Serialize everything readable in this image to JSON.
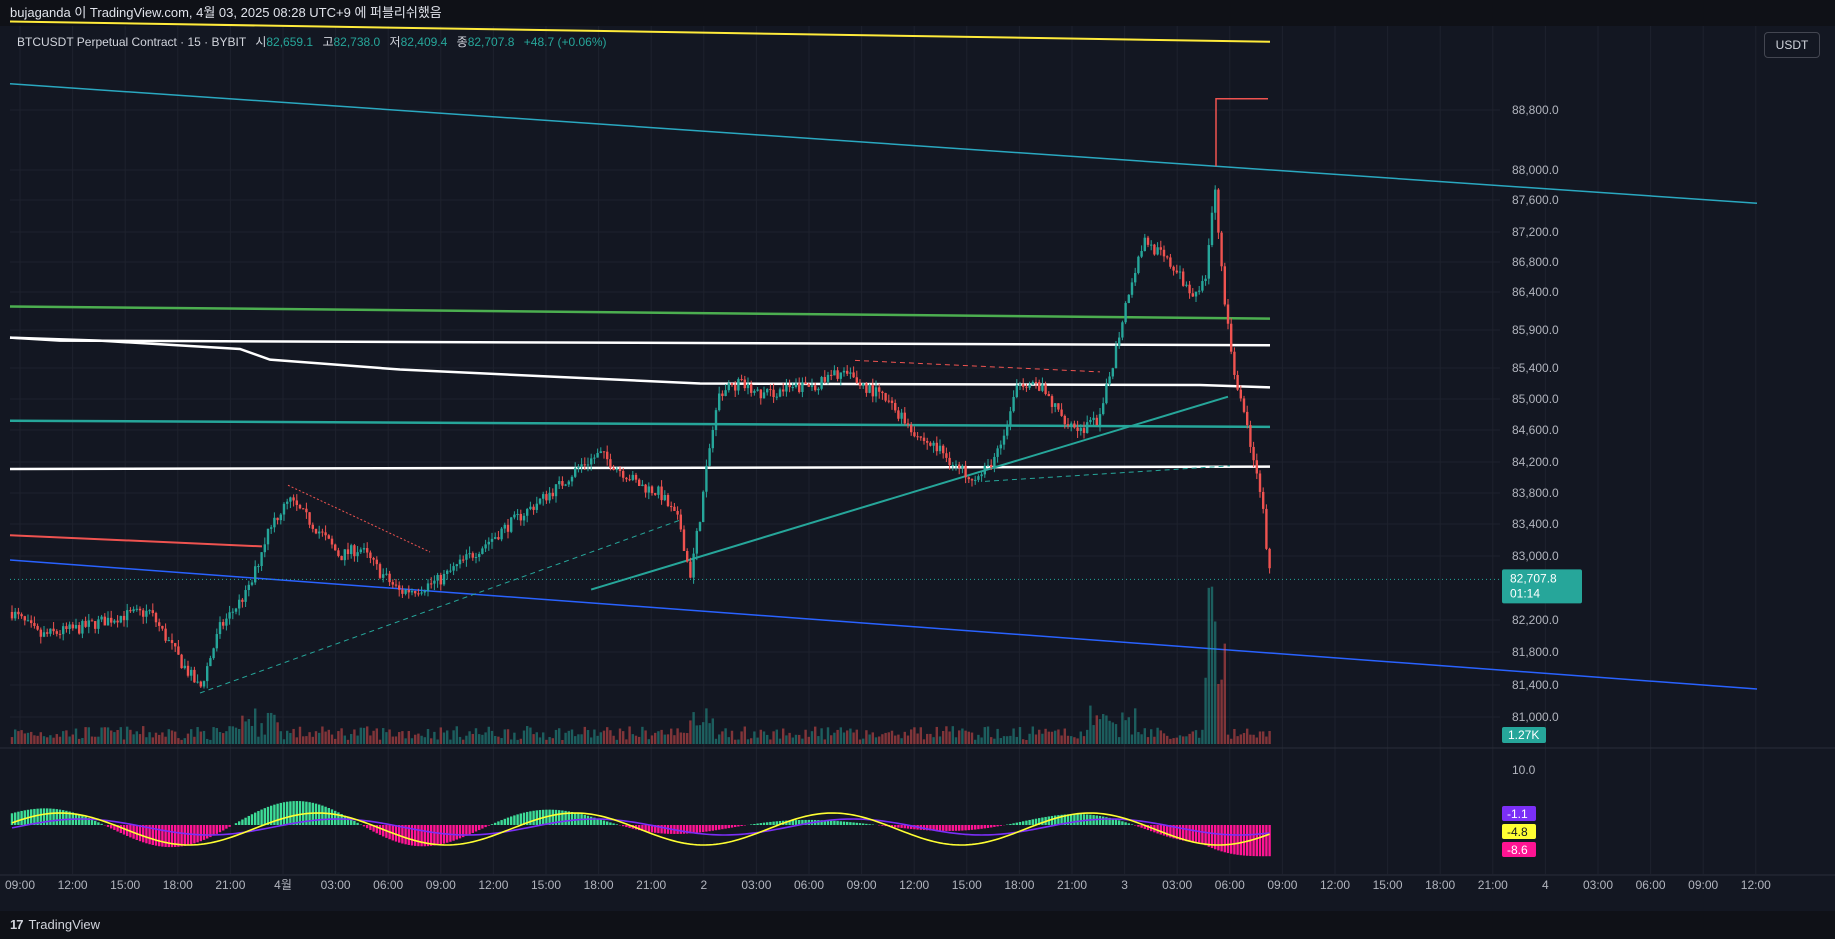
{
  "header": {
    "publish_line": "bujaganda 이 TradingView.com, 4월 03, 2025 08:28 UTC+9 에 퍼블리쉬했음"
  },
  "legend": {
    "symbol": "BTCUSDT Perpetual Contract · 15 · BYBIT",
    "open_label": "시",
    "open": "82,659.1",
    "high_label": "고",
    "high": "82,738.0",
    "low_label": "저",
    "low": "82,409.4",
    "close_label": "종",
    "close": "82,707.8",
    "change": "+48.7 (+0.06%)"
  },
  "currency_button": "USDT",
  "footer": {
    "brand": "TradingView"
  },
  "colors": {
    "background": "#131722",
    "up": "#26a69a",
    "down": "#ef5350",
    "histo_up": "#3ddc97",
    "histo_down": "#ff1493",
    "macd_line": "#ffff33",
    "signal_line": "#7b2ff7"
  },
  "chart_data": {
    "type": "candlestick",
    "price_axis": {
      "ticks": [
        88800,
        88000,
        87600,
        87200,
        86800,
        86400,
        85900,
        85400,
        85000,
        84600,
        84200,
        83800,
        83400,
        83000,
        82200,
        81800,
        81400,
        81000
      ],
      "tick_labels": [
        "88,800.0",
        "88,000.0",
        "87,600.0",
        "87,200.0",
        "86,800.0",
        "86,400.0",
        "85,900.0",
        "85,400.0",
        "85,000.0",
        "84,600.0",
        "84,200.0",
        "83,800.0",
        "83,400.0",
        "83,000.0",
        "82,200.0",
        "81,800.0",
        "81,400.0",
        "81,000.0"
      ],
      "ylim": [
        80900,
        89500
      ],
      "last_price_label": "82,707.8",
      "countdown_label": "01:14",
      "last_price": 82707.8,
      "volume_label": "1.27K"
    },
    "time_axis": {
      "labels": [
        "09:00",
        "12:00",
        "15:00",
        "18:00",
        "21:00",
        "4월",
        "03:00",
        "06:00",
        "09:00",
        "12:00",
        "15:00",
        "18:00",
        "21:00",
        "2",
        "03:00",
        "06:00",
        "09:00",
        "12:00",
        "15:00",
        "18:00",
        "21:00",
        "3",
        "03:00",
        "06:00",
        "09:00",
        "12:00",
        "15:00",
        "18:00",
        "21:00",
        "4",
        "03:00",
        "06:00",
        "09:00",
        "12:00"
      ]
    },
    "key_levels": [
      {
        "name": "yellow",
        "color": "#ffeb3b",
        "start": 89980,
        "end": 89710
      },
      {
        "name": "green",
        "color": "#4caf50",
        "start": 86210,
        "end": 86050
      },
      {
        "name": "white-upper",
        "color": "#ffffff",
        "start": 85800,
        "end": 85700
      },
      {
        "name": "white-mid",
        "color": "#ffffff",
        "start": 85800,
        "end": 85150
      },
      {
        "name": "teal",
        "color": "#26a69a",
        "start": 84720,
        "end": 84640
      },
      {
        "name": "white-lower",
        "color": "#ffffff",
        "start": 84110,
        "end": 84140
      }
    ],
    "trendlines": [
      {
        "name": "cyan-down",
        "color": "#2aa8c0",
        "from": [
          0,
          89150
        ],
        "to": [
          1,
          87560
        ]
      },
      {
        "name": "blue-down",
        "color": "#2962ff",
        "from": [
          0,
          82950
        ],
        "to": [
          1,
          81350
        ]
      },
      {
        "name": "red-short",
        "color": "#ef5350",
        "from": [
          0,
          83260
        ],
        "to": [
          0.148,
          83120
        ]
      },
      {
        "name": "teal-up",
        "color": "#26a69a",
        "from": [
          0.39,
          82580
        ],
        "to": [
          0.7,
          85030
        ]
      }
    ],
    "indicator": {
      "name": "MACD",
      "ticks": [
        10.0
      ],
      "tick_labels": [
        "10.0"
      ],
      "values_labels": [
        "-1.1",
        "-4.8",
        "-8.6"
      ]
    }
  }
}
